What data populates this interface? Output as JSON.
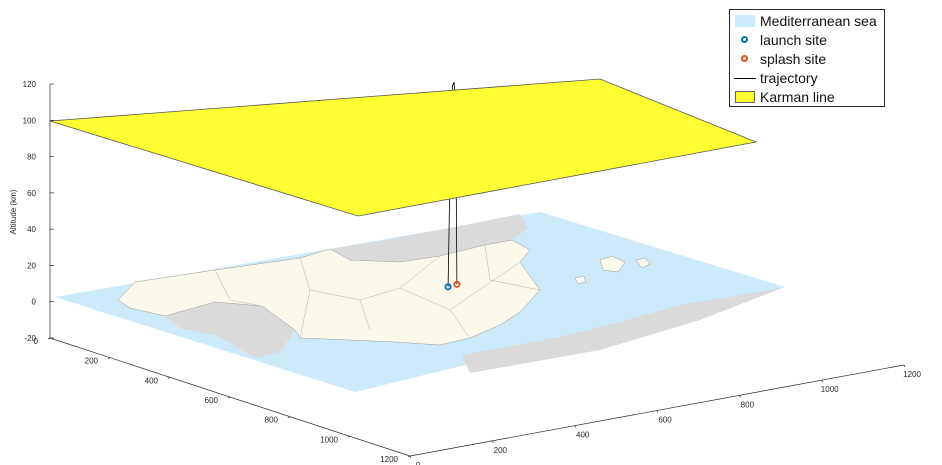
{
  "chart_data": {
    "type": "3d-surface-line",
    "xlabel": "",
    "ylabel": "",
    "zlabel": "Altitude (km)",
    "x_ticks": [
      0,
      200,
      400,
      600,
      800,
      1000,
      1200
    ],
    "y_ticks": [
      0,
      200,
      400,
      600,
      800,
      1000,
      1200
    ],
    "z_ticks": [
      -20,
      0,
      20,
      40,
      60,
      80,
      100,
      120
    ],
    "xlim": [
      0,
      1200
    ],
    "ylim": [
      0,
      1200
    ],
    "zlim": [
      -20,
      120
    ],
    "karman_line_altitude_km": 100,
    "launch_site": {
      "x": 690,
      "y": 380,
      "z": 0
    },
    "splash_site": {
      "x": 715,
      "y": 375,
      "z": 0
    },
    "trajectory": [
      {
        "x": 690,
        "y": 380,
        "z": 0
      },
      {
        "x": 693,
        "y": 380,
        "z": 40
      },
      {
        "x": 697,
        "y": 379,
        "z": 80
      },
      {
        "x": 702,
        "y": 378,
        "z": 110
      },
      {
        "x": 706,
        "y": 378,
        "z": 112
      },
      {
        "x": 710,
        "y": 377,
        "z": 95
      },
      {
        "x": 713,
        "y": 376,
        "z": 50
      },
      {
        "x": 715,
        "y": 375,
        "z": 0
      }
    ],
    "legend_position": "top-right",
    "series": [
      {
        "name": "Mediterranean sea",
        "kind": "patch",
        "color": "#cdeafa"
      },
      {
        "name": "launch site",
        "kind": "marker",
        "color": "#0072bd"
      },
      {
        "name": "splash site",
        "kind": "marker",
        "color": "#d95319"
      },
      {
        "name": "trajectory",
        "kind": "line",
        "color": "#000000"
      },
      {
        "name": "Karman line",
        "kind": "patch",
        "color": "#ffff33"
      }
    ],
    "land_color": "#fbf8ec",
    "foreign_land_color": "#dadada"
  }
}
